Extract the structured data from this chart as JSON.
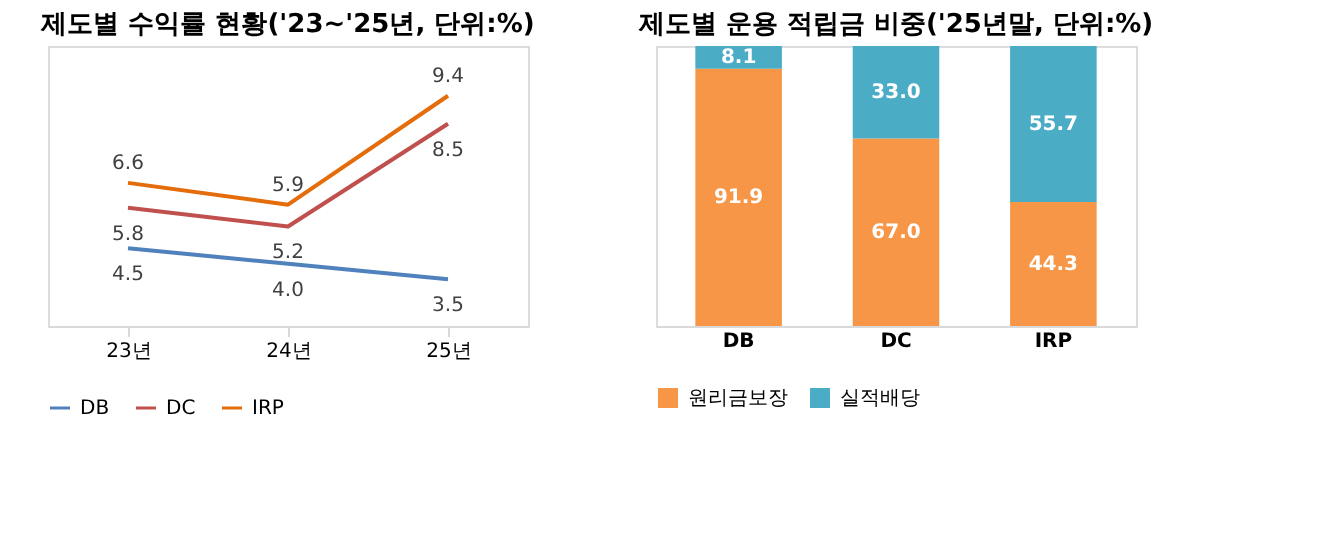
{
  "chart_data": [
    {
      "type": "line",
      "title": "제도별 수익률 현황('23~'25년, 단위:%)",
      "categories": [
        "23년",
        "24년",
        "25년"
      ],
      "legend": "bottom",
      "marker": "none",
      "line_style": "solid",
      "series": [
        {
          "name": "DB",
          "color": "#4f81bd",
          "values": [
            4.5,
            4.0,
            3.5
          ],
          "value_labels": [
            "4.5",
            "4.0",
            "3.5"
          ]
        },
        {
          "name": "DC",
          "color": "#c0504d",
          "values": [
            5.8,
            5.2,
            8.5
          ],
          "value_labels": [
            "5.8",
            "5.2",
            "8.5"
          ]
        },
        {
          "name": "IRP",
          "color": "#e46c0a",
          "values": [
            6.6,
            5.9,
            9.4
          ],
          "value_labels": [
            "6.6",
            "5.9",
            "9.4"
          ]
        }
      ]
    },
    {
      "type": "bar",
      "title": "제도별 운용 적립금 비중('25년말, 단위:%)",
      "categories": [
        "DB",
        "DC",
        "IRP"
      ],
      "stacked": true,
      "legend": "bottom",
      "series": [
        {
          "name": "원리금보장",
          "color": "#f79646",
          "values": [
            91.9,
            67.0,
            44.3
          ],
          "value_labels": [
            "91.9",
            "67.0",
            "44.3"
          ]
        },
        {
          "name": "실적배당",
          "color": "#4bacc6",
          "values": [
            8.1,
            33.0,
            55.7
          ],
          "value_labels": [
            "8.1",
            "33.0",
            "55.7"
          ]
        }
      ]
    }
  ]
}
